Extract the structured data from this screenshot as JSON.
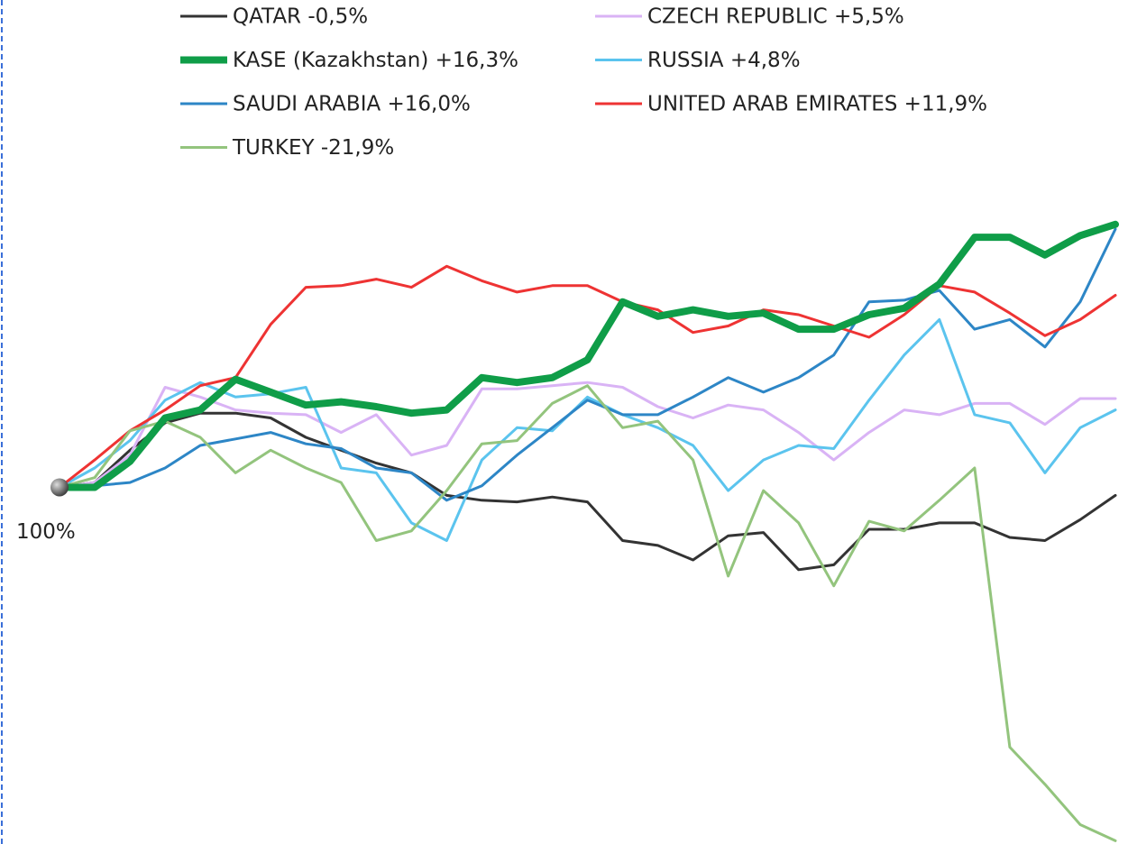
{
  "chart_data": {
    "type": "line",
    "ylim": [
      77.9,
      130.2
    ],
    "yticks": [
      {
        "value": 100,
        "label": "100%"
      }
    ],
    "legend": "top",
    "series": [
      {
        "name": "QATAR -0,5%",
        "color": "#333333",
        "linewidth": 3,
        "values": [
          100,
          100.3,
          102.3,
          104,
          104.6,
          104.6,
          104.3,
          103.1,
          102.3,
          101.5,
          100.9,
          99.5,
          99.2,
          99.1,
          99.4,
          99.1,
          96.7,
          96.4,
          95.5,
          97,
          97.2,
          94.9,
          95.2,
          97.4,
          97.4,
          97.8,
          97.8,
          96.9,
          96.7,
          98,
          99.5
        ]
      },
      {
        "name": "CZECH REPUBLIC +5,5%",
        "color": "#d9b3f5",
        "linewidth": 3,
        "values": [
          100,
          100.3,
          102,
          106.2,
          105.6,
          104.8,
          104.6,
          104.5,
          103.4,
          104.5,
          102,
          102.6,
          106.1,
          106.1,
          106.3,
          106.5,
          106.2,
          105,
          104.3,
          105.1,
          104.8,
          103.4,
          101.7,
          103.4,
          104.8,
          104.5,
          105.2,
          105.2,
          103.9,
          105.5,
          105.5
        ]
      },
      {
        "name": "KASE (Kazakhstan) +16,3%",
        "color": "#0f9d48",
        "linewidth": 8,
        "values": [
          100,
          100,
          101.6,
          104.3,
          104.8,
          106.7,
          105.9,
          105.1,
          105.3,
          105,
          104.6,
          104.8,
          106.8,
          106.5,
          106.8,
          107.9,
          111.5,
          110.6,
          111,
          110.6,
          110.8,
          109.8,
          109.8,
          110.7,
          111.1,
          112.6,
          115.5,
          115.5,
          114.4,
          115.6,
          116.3
        ]
      },
      {
        "name": "RUSSIA +4,8%",
        "color": "#5bc4ee",
        "linewidth": 3,
        "values": [
          100,
          101.2,
          102.9,
          105.4,
          106.5,
          105.6,
          105.8,
          106.2,
          101.2,
          100.9,
          97.8,
          96.7,
          101.7,
          103.7,
          103.5,
          105.6,
          104.5,
          103.7,
          102.6,
          99.8,
          101.7,
          102.6,
          102.4,
          105.4,
          108.2,
          110.4,
          104.5,
          104,
          100.9,
          103.7,
          104.8
        ]
      },
      {
        "name": "SAUDI ARABIA +16,0%",
        "color": "#2d86c6",
        "linewidth": 3,
        "values": [
          100,
          100.1,
          100.3,
          101.2,
          102.6,
          103,
          103.4,
          102.7,
          102.4,
          101.2,
          100.9,
          99.2,
          100.1,
          102,
          103.7,
          105.4,
          104.5,
          104.5,
          105.6,
          106.8,
          105.9,
          106.8,
          108.2,
          111.5,
          111.6,
          112.2,
          109.8,
          110.4,
          108.7,
          111.5,
          116
        ]
      },
      {
        "name": "UNITED ARAB EMIRATES +11,9%",
        "color": "#ee3333",
        "linewidth": 3,
        "values": [
          100,
          101.7,
          103.5,
          104.8,
          106.3,
          106.8,
          110.1,
          112.4,
          112.5,
          112.9,
          112.4,
          113.7,
          112.8,
          112.1,
          112.5,
          112.5,
          111.5,
          111,
          109.6,
          110,
          111,
          110.7,
          110,
          109.3,
          110.7,
          112.5,
          112.1,
          110.8,
          109.4,
          110.4,
          111.9
        ]
      },
      {
        "name": "TURKEY -21,9%",
        "color": "#93c47d",
        "linewidth": 3,
        "values": [
          100,
          100.6,
          103.5,
          104.1,
          103.1,
          100.9,
          102.3,
          101.2,
          100.3,
          96.7,
          97.3,
          99.8,
          102.7,
          102.9,
          105.2,
          106.3,
          103.7,
          104.1,
          101.7,
          94.5,
          99.8,
          97.8,
          93.9,
          97.9,
          97.3,
          99.2,
          101.2,
          83.9,
          81.6,
          79.1,
          78.1
        ]
      }
    ]
  }
}
